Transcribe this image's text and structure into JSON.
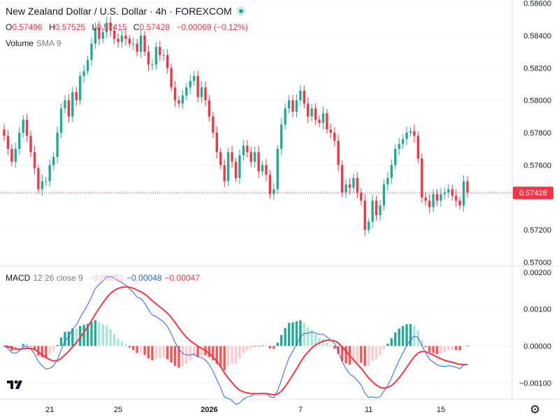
{
  "header": {
    "title": "New Zealand Dollar / U.S. Dollar · 4h · FOREXCOM",
    "ohlc": [
      {
        "key": "O",
        "value": "0.57496"
      },
      {
        "key": "H",
        "value": "0.57525"
      },
      {
        "key": "L",
        "value": "0.57415"
      },
      {
        "key": "C",
        "value": "0.57428"
      }
    ],
    "change": "−0.00069 (−0.12%)",
    "volume_label": "Volume",
    "volume_sub": "SMA 9",
    "macd_label": "MACD",
    "macd_params": "12 26 close 9",
    "macd_hist": "−0.00001",
    "macd_line": "−0.00048",
    "macd_signal": "−0.00047"
  },
  "colors": {
    "up": "#22ab94",
    "down": "#f23645",
    "macd_line": "#2962ff",
    "signal_line": "#f23645"
  },
  "logo_icon": "tradingview-logo-icon",
  "settings_icon": "gear-icon",
  "chart_data": [
    {
      "type": "candlestick",
      "title": "New Zealand Dollar / U.S. Dollar · 4h · FOREXCOM",
      "x_ticks": [
        "21",
        "25",
        "2026",
        "7",
        "11",
        "15"
      ],
      "y_ticks": [
        "0.58600",
        "0.58400",
        "0.58200",
        "0.58000",
        "0.57800",
        "0.57600",
        "0.57200",
        "0.57000"
      ],
      "ylim": [
        0.5698,
        0.5862
      ],
      "last_price": "0.57428",
      "grid": true,
      "close": [
        0.5778,
        0.577,
        0.5762,
        0.577,
        0.578,
        0.5788,
        0.5778,
        0.5768,
        0.5758,
        0.5745,
        0.575,
        0.575,
        0.576,
        0.5765,
        0.578,
        0.5795,
        0.58,
        0.579,
        0.5805,
        0.58,
        0.5815,
        0.5818,
        0.5825,
        0.5835,
        0.5845,
        0.5838,
        0.5842,
        0.5848,
        0.5843,
        0.5838,
        0.5836,
        0.584,
        0.5838,
        0.5835,
        0.5835,
        0.583,
        0.584,
        0.583,
        0.5822,
        0.5822,
        0.5833,
        0.5828,
        0.5828,
        0.582,
        0.5808,
        0.58,
        0.5798,
        0.5803,
        0.5808,
        0.5812,
        0.5815,
        0.5802,
        0.5808,
        0.58,
        0.579,
        0.578,
        0.5768,
        0.576,
        0.575,
        0.5768,
        0.5762,
        0.5752,
        0.5766,
        0.5772,
        0.5768,
        0.5762,
        0.5768,
        0.5756,
        0.576,
        0.5754,
        0.5742,
        0.5745,
        0.577,
        0.5785,
        0.5795,
        0.58,
        0.5793,
        0.58,
        0.5806,
        0.5798,
        0.579,
        0.5795,
        0.5788,
        0.5786,
        0.5792,
        0.5782,
        0.578,
        0.5775,
        0.576,
        0.5743,
        0.5748,
        0.5746,
        0.5752,
        0.5743,
        0.5738,
        0.572,
        0.5725,
        0.5738,
        0.5729,
        0.5735,
        0.5748,
        0.5752,
        0.576,
        0.577,
        0.5773,
        0.5776,
        0.578,
        0.5781,
        0.5778,
        0.5764,
        0.574,
        0.5738,
        0.5734,
        0.5742,
        0.5738,
        0.5742,
        0.5743,
        0.5745,
        0.5741,
        0.5738,
        0.5735,
        0.575,
        0.5743
      ]
    },
    {
      "type": "macd",
      "title": "MACD 12 26 close 9",
      "y_ticks": [
        "0.00200",
        "0.00100",
        "0.00000",
        "−0.00100"
      ],
      "ylim": [
        -0.00145,
        0.00215
      ],
      "series": [
        {
          "name": "MACD",
          "color": "#2962ff"
        },
        {
          "name": "Signal",
          "color": "#f23645"
        },
        {
          "name": "Histogram",
          "color": "#22ab94"
        }
      ]
    }
  ]
}
